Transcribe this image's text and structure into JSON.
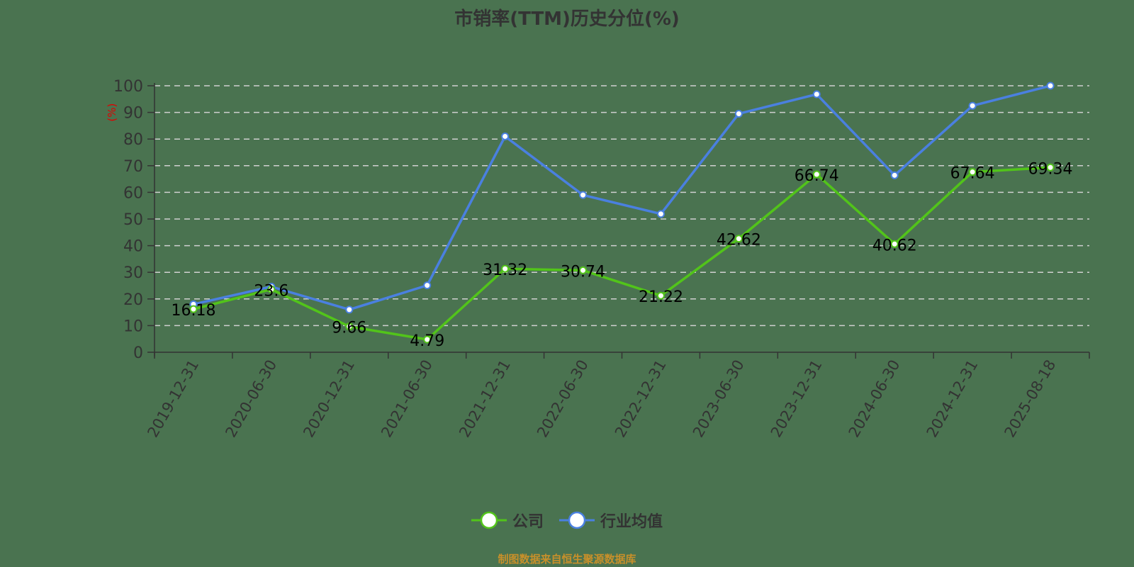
{
  "title": "市销率(TTM)历史分位(%)",
  "footer": "制图数据来自恒生聚源数据库",
  "colors": {
    "background": "#4a7350",
    "company": "#52c41a",
    "industry": "#4a80e0",
    "grid": "#d0d0d0",
    "axis": "#333333",
    "ylabel": "#e00000",
    "footer": "#c8902a"
  },
  "legend": [
    {
      "name": "公司",
      "color": "#52c41a"
    },
    {
      "name": "行业均值",
      "color": "#4a80e0"
    }
  ],
  "chart_data": {
    "type": "line",
    "title": "市销率(TTM)历史分位(%)",
    "xlabel": "",
    "ylabel": "(%)",
    "ylim": [
      0,
      100
    ],
    "yticks": [
      0,
      10,
      20,
      30,
      40,
      50,
      60,
      70,
      80,
      90,
      100
    ],
    "grid": true,
    "legend_position": "bottom",
    "categories": [
      "2019-12-31",
      "2020-06-30",
      "2020-12-31",
      "2021-06-30",
      "2021-12-31",
      "2022-06-30",
      "2022-12-31",
      "2023-06-30",
      "2023-12-31",
      "2024-06-30",
      "2024-12-31",
      "2025-08-18"
    ],
    "series": [
      {
        "name": "公司",
        "color": "#52c41a",
        "show_labels": true,
        "values": [
          16.18,
          23.6,
          9.66,
          4.79,
          31.32,
          30.74,
          21.22,
          42.62,
          66.74,
          40.62,
          67.64,
          69.34
        ]
      },
      {
        "name": "行业均值",
        "color": "#4a80e0",
        "show_labels": false,
        "values": [
          18.0,
          24.6,
          16.0,
          25.1,
          81.0,
          59.0,
          51.9,
          89.5,
          96.8,
          66.4,
          92.5,
          100.0
        ]
      }
    ]
  }
}
